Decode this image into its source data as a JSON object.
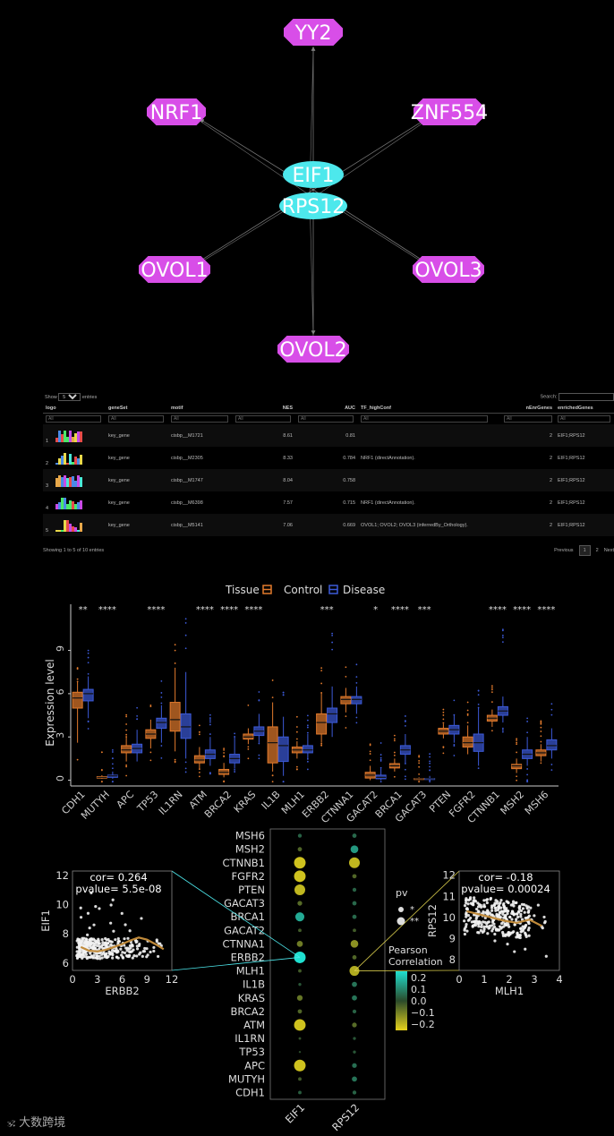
{
  "network": {
    "hub_nodes": [
      "EIF1",
      "RPS12"
    ],
    "tf_nodes": [
      "YY2",
      "NRF1",
      "ZNF554",
      "OVOL1",
      "OVOL3",
      "OVOL2"
    ],
    "colors": {
      "tf": "#d84ee8",
      "hub": "#4de8ec",
      "edge": "#777777"
    }
  },
  "table": {
    "show_label": "Show",
    "show_value": "5",
    "entries_label": "entries",
    "search_label": "Search:",
    "columns": [
      "logo",
      "geneSet",
      "motif",
      "NES",
      "AUC",
      "TF_highConf",
      "nEnrGenes",
      "enrichedGenes"
    ],
    "filter_placeholder": "All",
    "rows": [
      {
        "idx": "1",
        "geneSet": "key_gene",
        "motif": "cisbp__M1721",
        "NES": "8.61",
        "AUC": "0.81",
        "TF_highConf": "",
        "nEnrGenes": "2",
        "enrichedGenes": "EIF1;RPS12"
      },
      {
        "idx": "2",
        "geneSet": "key_gene",
        "motif": "cisbp__M2305",
        "NES": "8.33",
        "AUC": "0.784",
        "TF_highConf": "NRF1 (directAnnotation).",
        "nEnrGenes": "2",
        "enrichedGenes": "EIF1;RPS12"
      },
      {
        "idx": "3",
        "geneSet": "key_gene",
        "motif": "cisbp__M1747",
        "NES": "8.04",
        "AUC": "0.758",
        "TF_highConf": "",
        "nEnrGenes": "2",
        "enrichedGenes": "EIF1;RPS12"
      },
      {
        "idx": "4",
        "geneSet": "key_gene",
        "motif": "cisbp__M6398",
        "NES": "7.57",
        "AUC": "0.715",
        "TF_highConf": "NRF1 (directAnnotation).",
        "nEnrGenes": "2",
        "enrichedGenes": "EIF1;RPS12"
      },
      {
        "idx": "5",
        "geneSet": "key_gene",
        "motif": "cisbp__M5141",
        "NES": "7.06",
        "AUC": "0.669",
        "TF_highConf": "OVOL1; OVOL2; OVOL3 (inferredBy_Orthology).",
        "nEnrGenes": "2",
        "enrichedGenes": "EIF1;RPS12"
      }
    ],
    "info": "Showing 1 to 5 of 10 entries",
    "pager": {
      "previous": "Previous",
      "pages": [
        "1",
        "2"
      ],
      "current": "1",
      "next": "Next"
    }
  },
  "chart_data": [
    {
      "type": "box",
      "legend_title": "Tissue",
      "legend": [
        "Control",
        "Disease"
      ],
      "legend_placement": "top",
      "ylabel": "Expression level",
      "yticks": [
        0,
        3,
        6,
        9
      ],
      "ylim": [
        -0.4,
        12.2
      ],
      "colors": {
        "Control": "#e27a2c",
        "Disease": "#3c5ad8"
      },
      "categories": [
        "CDH1",
        "MUTYH",
        "APC",
        "TP53",
        "IL1RN",
        "ATM",
        "BRCA2",
        "KRAS",
        "IL1B",
        "MLH1",
        "ERBB2",
        "CTNNA1",
        "GACAT2",
        "BRCA1",
        "GACAT3",
        "PTEN",
        "FGFR2",
        "CTNNB1",
        "MSH2",
        "MSH6"
      ],
      "significance": [
        "**",
        "****",
        "",
        "****",
        "",
        "****",
        "****",
        "****",
        "",
        "",
        "***",
        "",
        "*",
        "****",
        "***",
        "",
        "",
        "****",
        "****",
        "****"
      ],
      "series": [
        {
          "name": "Control",
          "boxes": [
            [
              2.6,
              5.0,
              5.7,
              6.1,
              6.8
            ],
            [
              0.1,
              0.15,
              0.2,
              0.25,
              0.35
            ],
            [
              1.3,
              1.9,
              2.1,
              2.4,
              3.0
            ],
            [
              2.2,
              2.9,
              3.2,
              3.5,
              4.2
            ],
            [
              2.0,
              3.4,
              4.2,
              5.4,
              7.8
            ],
            [
              0.8,
              1.2,
              1.4,
              1.7,
              2.3
            ],
            [
              0.2,
              0.4,
              0.55,
              0.75,
              1.2
            ],
            [
              2.5,
              2.85,
              3.0,
              3.2,
              3.6
            ],
            [
              0.6,
              1.2,
              2.6,
              3.7,
              5.4
            ],
            [
              1.5,
              1.9,
              2.1,
              2.3,
              2.7
            ],
            [
              2.6,
              3.2,
              4.0,
              4.6,
              6.0
            ],
            [
              4.7,
              5.3,
              5.6,
              5.8,
              6.4
            ],
            [
              0.0,
              0.15,
              0.35,
              0.55,
              1.0
            ],
            [
              0.6,
              0.85,
              1.0,
              1.15,
              1.5
            ],
            [
              0.0,
              0.05,
              0.1,
              0.12,
              0.2
            ],
            [
              2.9,
              3.2,
              3.4,
              3.6,
              3.9
            ],
            [
              1.8,
              2.3,
              2.6,
              3.0,
              3.8
            ],
            [
              3.7,
              4.1,
              4.3,
              4.5,
              4.9
            ],
            [
              0.5,
              0.8,
              1.0,
              1.1,
              1.5
            ],
            [
              1.3,
              1.7,
              1.9,
              2.1,
              2.5
            ]
          ]
        },
        {
          "name": "Disease",
          "boxes": [
            [
              4.3,
              5.5,
              6.0,
              6.3,
              7.2
            ],
            [
              0.1,
              0.2,
              0.3,
              0.35,
              0.6
            ],
            [
              1.3,
              1.9,
              2.2,
              2.5,
              3.5
            ],
            [
              2.6,
              3.6,
              4.0,
              4.3,
              5.2
            ],
            [
              1.5,
              2.9,
              3.7,
              4.6,
              7.5
            ],
            [
              1.0,
              1.5,
              1.8,
              2.1,
              3.0
            ],
            [
              0.8,
              1.2,
              1.5,
              1.8,
              3.0
            ],
            [
              2.6,
              3.1,
              3.4,
              3.7,
              4.6
            ],
            [
              0.3,
              1.3,
              2.4,
              3.0,
              4.4
            ],
            [
              1.5,
              1.9,
              2.1,
              2.4,
              3.2
            ],
            [
              3.0,
              4.0,
              4.6,
              5.0,
              6.5
            ],
            [
              4.6,
              5.3,
              5.6,
              5.8,
              6.5
            ],
            [
              0.0,
              0.1,
              0.2,
              0.35,
              0.8
            ],
            [
              1.2,
              1.8,
              2.1,
              2.4,
              3.2
            ],
            [
              0.0,
              0.05,
              0.1,
              0.12,
              0.3
            ],
            [
              2.6,
              3.2,
              3.5,
              3.8,
              4.5
            ],
            [
              1.0,
              2.0,
              2.6,
              3.2,
              5.0
            ],
            [
              4.0,
              4.5,
              4.8,
              5.1,
              5.8
            ],
            [
              1.0,
              1.5,
              1.8,
              2.1,
              3.0
            ],
            [
              1.5,
              2.1,
              2.4,
              2.8,
              3.6
            ]
          ]
        }
      ]
    },
    {
      "type": "scatter",
      "xlabel": "ERBB2",
      "ylabel": "EIF1",
      "xticks": [
        0,
        3,
        6,
        9,
        12
      ],
      "yticks": [
        6,
        8,
        10,
        12
      ],
      "xlim": [
        0,
        12
      ],
      "ylim": [
        5.5,
        12.3
      ],
      "annotation": {
        "cor": "cor= 0.264",
        "pvalue": "pvalue= 5.5e-08"
      },
      "trend_x": [
        1,
        2,
        3,
        4,
        5,
        6,
        7,
        8,
        9,
        10,
        11
      ],
      "trend_y": [
        7.1,
        6.85,
        6.8,
        6.9,
        7.1,
        7.3,
        7.55,
        7.75,
        7.6,
        7.3,
        6.95
      ]
    },
    {
      "type": "scatter",
      "xlabel": "MLH1",
      "ylabel": "RPS12",
      "xticks": [
        0,
        1,
        2,
        3,
        4
      ],
      "yticks": [
        8,
        9,
        10,
        11,
        12
      ],
      "xlim": [
        0,
        4
      ],
      "ylim": [
        7.5,
        12.2
      ],
      "annotation": {
        "cor": "cor= -0.18",
        "pvalue": "pvalue= 0.00024"
      },
      "trend_x": [
        0.3,
        0.8,
        1.3,
        1.8,
        2.3,
        2.8,
        3.3
      ],
      "trend_y": [
        10.3,
        10.15,
        10.0,
        9.85,
        9.75,
        9.9,
        9.6
      ]
    },
    {
      "type": "dot",
      "xcategories": [
        "EIF1",
        "RPS12"
      ],
      "ycategories": [
        "MSH6",
        "MSH2",
        "CTNNB1",
        "FGFR2",
        "PTEN",
        "GACAT3",
        "BRCA1",
        "GACAT2",
        "CTNNA1",
        "ERBB2",
        "MLH1",
        "IL1B",
        "KRAS",
        "BRCA2",
        "ATM",
        "IL1RN",
        "TP53",
        "APC",
        "MUTYH",
        "CDH1"
      ],
      "correlation": {
        "EIF1": [
          0.04,
          -0.05,
          -0.22,
          -0.22,
          -0.2,
          -0.06,
          0.16,
          -0.03,
          -0.09,
          0.264,
          -0.03,
          0.02,
          -0.08,
          -0.05,
          -0.22,
          -0.01,
          0.0,
          -0.22,
          -0.03,
          0.03
        ],
        "RPS12": [
          0.05,
          0.13,
          -0.2,
          -0.05,
          0.04,
          0.05,
          0.05,
          -0.03,
          -0.13,
          -0.05,
          -0.18,
          0.07,
          0.07,
          0.04,
          -0.06,
          0.02,
          0.02,
          0.06,
          0.07,
          0.04
        ]
      },
      "size_legend_title": "pv",
      "size_legend": [
        "*",
        "**"
      ],
      "color_legend_title": "Pearson\nCorrelation",
      "color_ticks": [
        "0.2",
        "0.1",
        "0.0",
        "−0.1",
        "−0.2"
      ],
      "colors": {
        "high": "#1fe0d0",
        "mid": "#3a5a3a",
        "low": "#e6d21c"
      }
    }
  ],
  "watermark": "大数跨境"
}
